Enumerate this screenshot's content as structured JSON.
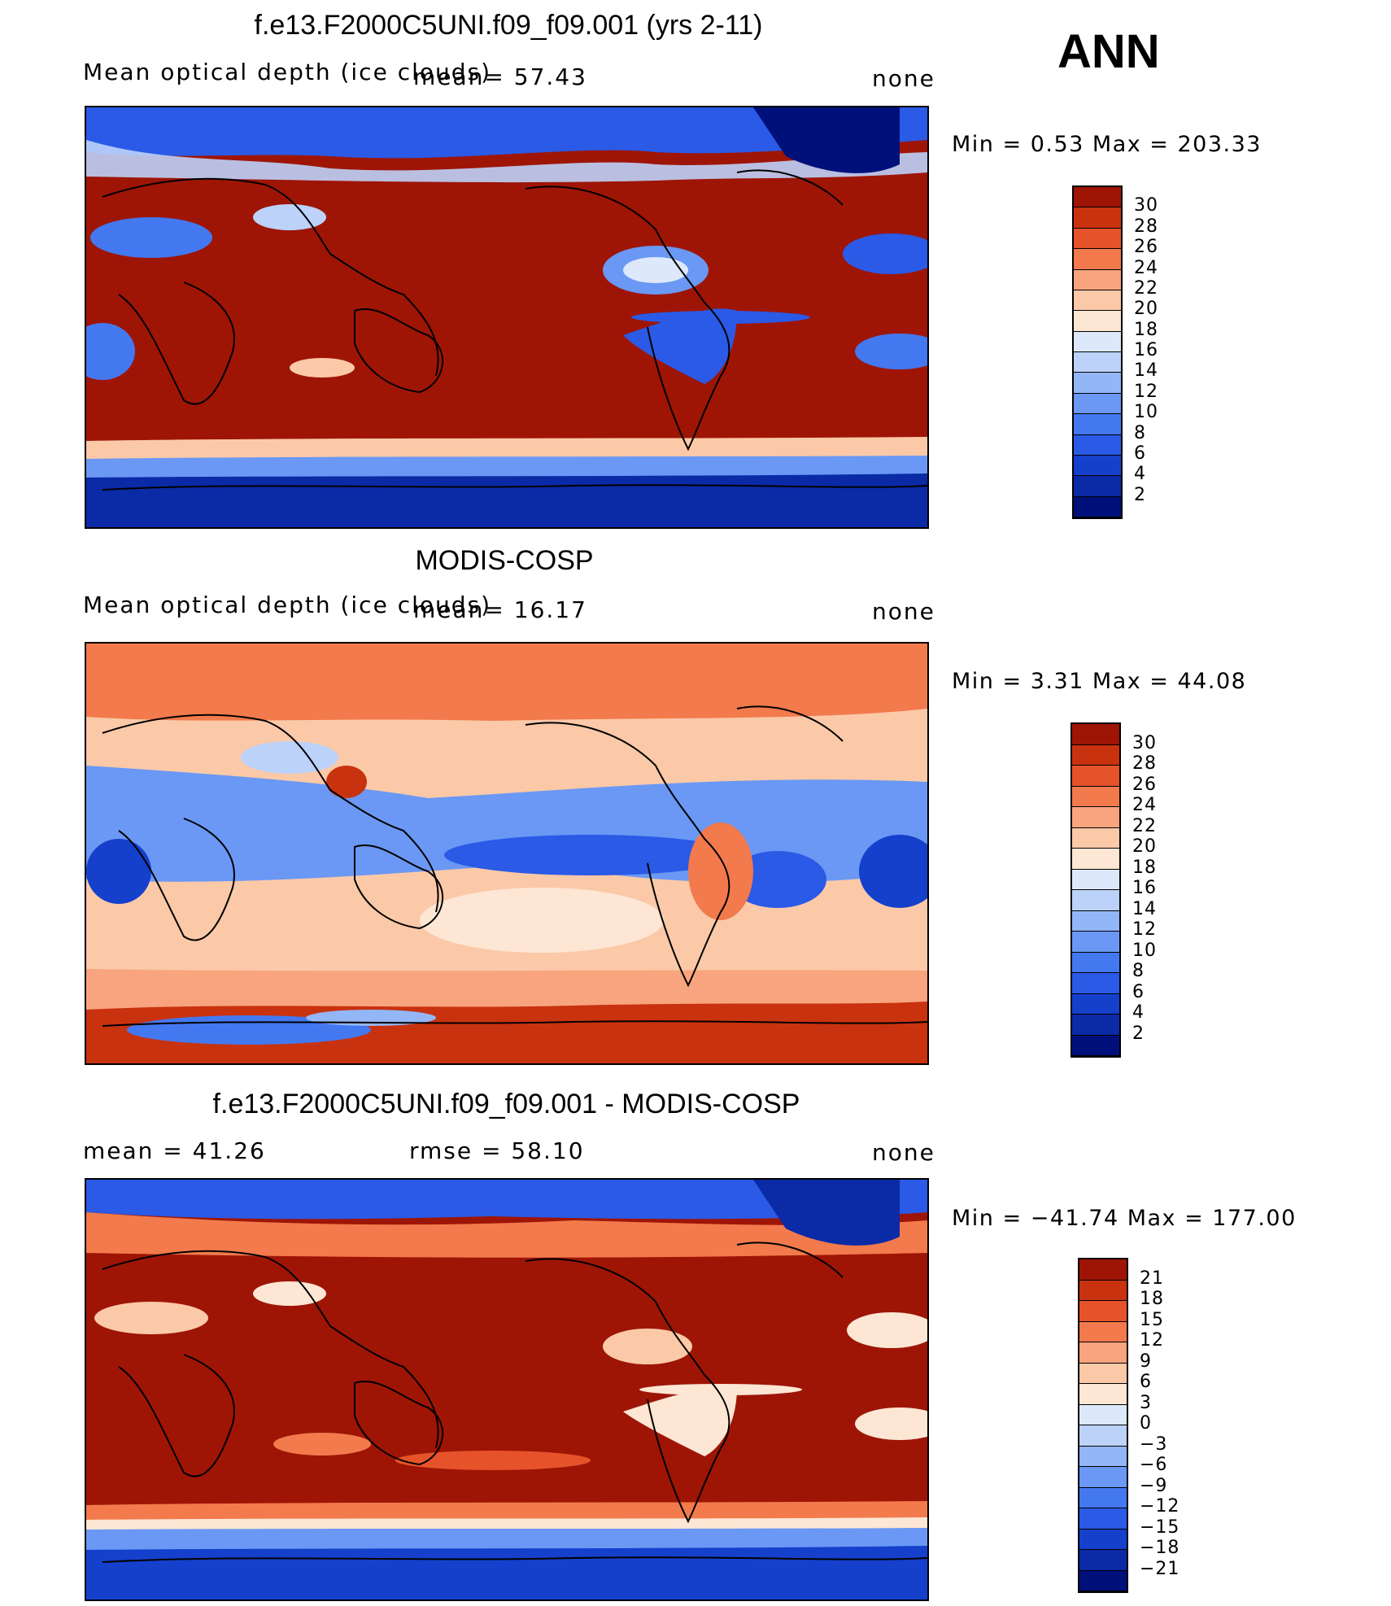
{
  "season": "ANN",
  "palette_main": [
    "#00107a",
    "#0a2aa6",
    "#1440cc",
    "#2a5ae6",
    "#4478f0",
    "#6a98f4",
    "#93b6f7",
    "#bcd2f9",
    "#dde9fb",
    "#fde6d4",
    "#fbc9a8",
    "#f8a47e",
    "#f27a4c",
    "#e6532a",
    "#c9320f",
    "#9e1506"
  ],
  "palette_diff": [
    "#00107a",
    "#0a2aa6",
    "#1440cc",
    "#2a5ae6",
    "#4478f0",
    "#6a98f4",
    "#93b6f7",
    "#bcd2f9",
    "#dde9fb",
    "#fde6d4",
    "#fbc9a8",
    "#f8a47e",
    "#f27a4c",
    "#e6532a",
    "#c9320f",
    "#9e1506"
  ],
  "panels": [
    {
      "title": "f.e13.F2000C5UNI.f09_f09.001 (yrs 2-11)",
      "left_label": "Mean optical depth (ice clouds)",
      "center_label": "mean=  57.43",
      "right_label": "none",
      "minmax": "Min =    0.53 Max  = 203.33",
      "colorbar_ticks": [
        "30",
        "28",
        "26",
        "24",
        "22",
        "20",
        "18",
        "16",
        "14",
        "12",
        "10",
        "8",
        "6",
        "4",
        "2"
      ]
    },
    {
      "title": "MODIS-COSP",
      "left_label": "Mean optical depth (ice clouds)",
      "center_label": "mean=  16.17",
      "right_label": "none",
      "minmax": "Min =    3.31 Max  =   44.08",
      "colorbar_ticks": [
        "30",
        "28",
        "26",
        "24",
        "22",
        "20",
        "18",
        "16",
        "14",
        "12",
        "10",
        "8",
        "6",
        "4",
        "2"
      ]
    },
    {
      "title": "f.e13.F2000C5UNI.f09_f09.001 - MODIS-COSP",
      "left_label": "mean =   41.26",
      "center_label": "rmse =   58.10",
      "right_label": "none",
      "minmax": "Min = −41.74 Max  = 177.00",
      "colorbar_ticks": [
        "21",
        "18",
        "15",
        "12",
        "9",
        "6",
        "3",
        "0",
        "−3",
        "−6",
        "−9",
        "−12",
        "−15",
        "−18",
        "−21"
      ]
    }
  ],
  "chart_data": [
    {
      "type": "heatmap",
      "title": "f.e13.F2000C5UNI.f09_f09.001 (yrs 2-11)",
      "variable": "Mean optical depth (ice clouds)",
      "mean": 57.43,
      "min": 0.53,
      "max": 203.33,
      "units": "none",
      "contour_levels": [
        2,
        4,
        6,
        8,
        10,
        12,
        14,
        16,
        18,
        20,
        22,
        24,
        26,
        28,
        30
      ],
      "projection": "cylindrical equidistant, Pacific-centred"
    },
    {
      "type": "heatmap",
      "title": "MODIS-COSP",
      "variable": "Mean optical depth (ice clouds)",
      "mean": 16.17,
      "min": 3.31,
      "max": 44.08,
      "units": "none",
      "contour_levels": [
        2,
        4,
        6,
        8,
        10,
        12,
        14,
        16,
        18,
        20,
        22,
        24,
        26,
        28,
        30
      ],
      "projection": "cylindrical equidistant, Pacific-centred"
    },
    {
      "type": "heatmap",
      "title": "f.e13.F2000C5UNI.f09_f09.001 - MODIS-COSP",
      "mean": 41.26,
      "rmse": 58.1,
      "min": -41.74,
      "max": 177.0,
      "units": "none",
      "contour_levels": [
        -21,
        -18,
        -15,
        -12,
        -9,
        -6,
        -3,
        0,
        3,
        6,
        9,
        12,
        15,
        18,
        21
      ],
      "projection": "cylindrical equidistant, Pacific-centred"
    }
  ]
}
